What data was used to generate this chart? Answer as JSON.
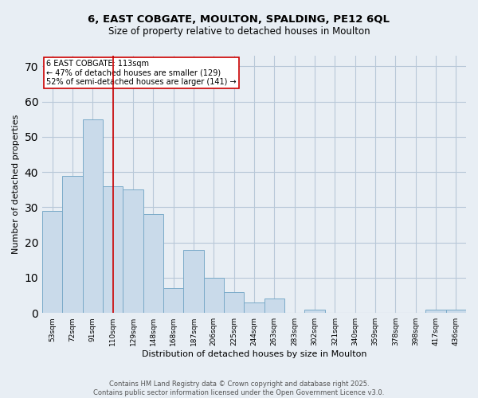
{
  "title_line1": "6, EAST COBGATE, MOULTON, SPALDING, PE12 6QL",
  "title_line2": "Size of property relative to detached houses in Moulton",
  "xlabel": "Distribution of detached houses by size in Moulton",
  "ylabel": "Number of detached properties",
  "categories": [
    "53sqm",
    "72sqm",
    "91sqm",
    "110sqm",
    "129sqm",
    "148sqm",
    "168sqm",
    "187sqm",
    "206sqm",
    "225sqm",
    "244sqm",
    "263sqm",
    "283sqm",
    "302sqm",
    "321sqm",
    "340sqm",
    "359sqm",
    "378sqm",
    "398sqm",
    "417sqm",
    "436sqm"
  ],
  "values": [
    29,
    39,
    55,
    36,
    35,
    28,
    7,
    18,
    10,
    6,
    3,
    4,
    0,
    1,
    0,
    0,
    0,
    0,
    0,
    1,
    1
  ],
  "bar_color": "#c9daea",
  "bar_edge_color": "#7aaac8",
  "annotation_line1": "6 EAST COBGATE: 113sqm",
  "annotation_line2": "← 47% of detached houses are smaller (129)",
  "annotation_line3": "52% of semi-detached houses are larger (141) →",
  "vline_color": "#cc0000",
  "vline_x": 3,
  "ylim": [
    0,
    73
  ],
  "footer_line1": "Contains HM Land Registry data © Crown copyright and database right 2025.",
  "footer_line2": "Contains public sector information licensed under the Open Government Licence v3.0.",
  "background_color": "#e8eef4",
  "plot_bg_color": "#e8eef4",
  "grid_color": "#b8c8d8",
  "title_fontsize": 9.5,
  "subtitle_fontsize": 8.5,
  "xlabel_fontsize": 8,
  "ylabel_fontsize": 8,
  "tick_fontsize": 6.5,
  "annotation_fontsize": 7,
  "footer_fontsize": 6
}
